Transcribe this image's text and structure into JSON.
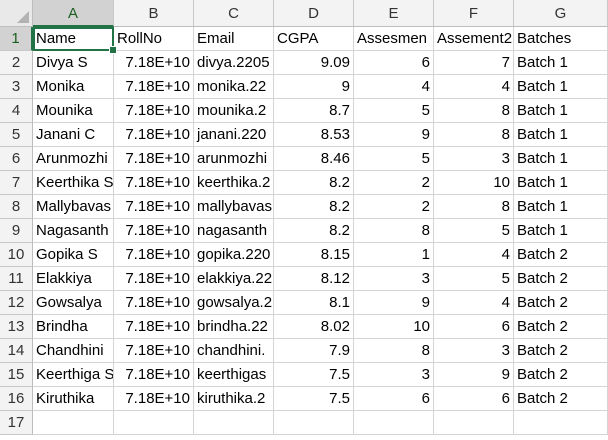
{
  "columns": [
    "A",
    "B",
    "C",
    "D",
    "E",
    "F",
    "G"
  ],
  "row_numbers": [
    "1",
    "2",
    "3",
    "4",
    "5",
    "6",
    "7",
    "8",
    "9",
    "10",
    "11",
    "12",
    "13",
    "14",
    "15",
    "16",
    "17"
  ],
  "header_row": [
    "Name",
    "RollNo",
    "Email",
    "CGPA",
    "Assesmen",
    "Assement2",
    "Batches"
  ],
  "rows": [
    [
      "Divya S",
      "7.18E+10",
      "divya.2205",
      "9.09",
      "6",
      "7",
      "Batch 1"
    ],
    [
      "Monika",
      "7.18E+10",
      "monika.22",
      "9",
      "4",
      "4",
      "Batch 1"
    ],
    [
      "Mounika",
      "7.18E+10",
      "mounika.2",
      "8.7",
      "5",
      "8",
      "Batch 1"
    ],
    [
      "Janani C",
      "7.18E+10",
      "janani.220",
      "8.53",
      "9",
      "8",
      "Batch 1"
    ],
    [
      "Arunmozhi",
      "7.18E+10",
      "arunmozhi",
      "8.46",
      "5",
      "3",
      "Batch 1"
    ],
    [
      "Keerthika S",
      "7.18E+10",
      "keerthika.2",
      "8.2",
      "2",
      "10",
      "Batch 1"
    ],
    [
      "Mallybavas",
      "7.18E+10",
      "mallybavas",
      "8.2",
      "2",
      "8",
      "Batch 1"
    ],
    [
      "Nagasanth",
      "7.18E+10",
      "nagasanth",
      "8.2",
      "8",
      "5",
      "Batch 1"
    ],
    [
      "Gopika S",
      "7.18E+10",
      "gopika.220",
      "8.15",
      "1",
      "4",
      "Batch 2"
    ],
    [
      "Elakkiya",
      "7.18E+10",
      "elakkiya.22",
      "8.12",
      "3",
      "5",
      "Batch 2"
    ],
    [
      "Gowsalya",
      "7.18E+10",
      "gowsalya.2",
      "8.1",
      "9",
      "4",
      "Batch 2"
    ],
    [
      "Brindha",
      "7.18E+10",
      "brindha.22",
      "8.02",
      "10",
      "6",
      "Batch 2"
    ],
    [
      "Chandhini",
      "7.18E+10",
      "chandhini.",
      "7.9",
      "8",
      "3",
      "Batch 2"
    ],
    [
      "Keerthiga S",
      "7.18E+10",
      "keerthigas",
      "7.5",
      "3",
      "9",
      "Batch 2"
    ],
    [
      "Kiruthika",
      "7.18E+10",
      "kiruthika.2",
      "7.5",
      "6",
      "6",
      "Batch 2"
    ]
  ],
  "numeric_columns": [
    1,
    3,
    4,
    5
  ],
  "selected_cell": "A1",
  "colors": {
    "selection": "#217346",
    "header_bg": "#f3f3f3",
    "header_selected_bg": "#d2d2d2",
    "gridline": "#d4d4d4"
  }
}
